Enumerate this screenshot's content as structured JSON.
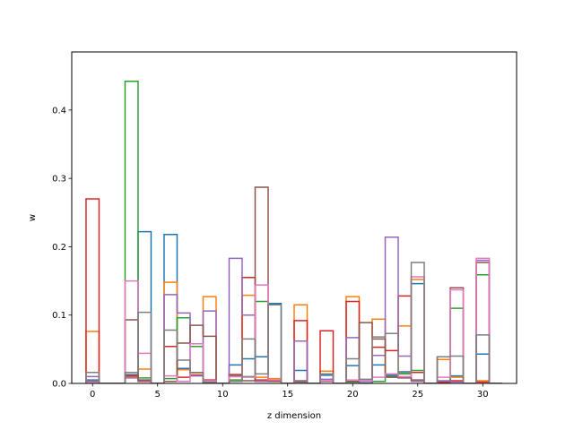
{
  "chart_data": {
    "type": "bar",
    "style": "step-outline histogram",
    "xlabel": "z dimension",
    "ylabel": "w",
    "xlim": [
      -1.6,
      32.6
    ],
    "ylim": [
      0,
      0.485
    ],
    "xticks": [
      0,
      5,
      10,
      15,
      20,
      25,
      30
    ],
    "yticks": [
      0.0,
      0.1,
      0.2,
      0.3,
      0.4
    ],
    "grid": false,
    "legend": "none",
    "bin_width": 1,
    "series": [
      {
        "color": "#1f77b4",
        "values": [
          0.005,
          0,
          0,
          0.013,
          0.222,
          0,
          0.218,
          0.022,
          0.012,
          0,
          0,
          0.027,
          0.036,
          0.039,
          0.117,
          0,
          0.019,
          0,
          0.012,
          0,
          0.026,
          0.003,
          0.027,
          0.012,
          0.017,
          0.146,
          0,
          0,
          0.011,
          0,
          0.043,
          0
        ]
      },
      {
        "color": "#ff7f0e",
        "values": [
          0.076,
          0,
          0,
          0.01,
          0.021,
          0,
          0.148,
          0.02,
          0.015,
          0.127,
          0,
          0.01,
          0.129,
          0.009,
          0.007,
          0,
          0.115,
          0,
          0.018,
          0,
          0.127,
          0,
          0.094,
          0.01,
          0.084,
          0.152,
          0,
          0.035,
          0.009,
          0,
          0.004,
          0
        ]
      },
      {
        "color": "#2ca02c",
        "values": [
          0,
          0,
          0,
          0.442,
          0.008,
          0,
          0.007,
          0.096,
          0.054,
          0,
          0,
          0.005,
          0.01,
          0.12,
          0.004,
          0,
          0.003,
          0,
          0.003,
          0,
          0.002,
          0,
          0.003,
          0.01,
          0.014,
          0.019,
          0,
          0.002,
          0.11,
          0,
          0.159,
          0
        ]
      },
      {
        "color": "#d62728",
        "values": [
          0.27,
          0,
          0,
          0.011,
          0.003,
          0,
          0.054,
          0.009,
          0.012,
          0.005,
          0,
          0.013,
          0.155,
          0.005,
          0.004,
          0,
          0.092,
          0,
          0.077,
          0,
          0.12,
          0,
          0.053,
          0.048,
          0.128,
          0.016,
          0,
          0.002,
          0.004,
          0,
          0.002,
          0
        ]
      },
      {
        "color": "#9467bd",
        "values": [
          0.01,
          0,
          0,
          0.008,
          0.004,
          0,
          0.13,
          0.103,
          0.011,
          0.106,
          0,
          0.183,
          0.1,
          0.003,
          0.003,
          0,
          0.062,
          0,
          0.006,
          0,
          0.067,
          0,
          0.041,
          0.214,
          0.04,
          0.003,
          0,
          0.004,
          0.002,
          0,
          0.18,
          0
        ]
      },
      {
        "color": "#8c564b",
        "values": [
          0.003,
          0,
          0,
          0.093,
          0.005,
          0,
          0.003,
          0.059,
          0.085,
          0.069,
          0,
          0.012,
          0.004,
          0.287,
          0.003,
          0,
          0.002,
          0,
          0.003,
          0,
          0.003,
          0.089,
          0.065,
          0.009,
          0.008,
          0.005,
          0,
          0.039,
          0.14,
          0,
          0.177,
          0
        ]
      },
      {
        "color": "#e377c2",
        "values": [
          0.002,
          0,
          0,
          0.15,
          0.044,
          0,
          0.011,
          0.003,
          0.058,
          0.004,
          0,
          0.01,
          0.009,
          0.144,
          0.005,
          0,
          0.004,
          0,
          0.004,
          0,
          0.005,
          0.004,
          0.009,
          0.014,
          0.01,
          0.156,
          0,
          0.009,
          0.137,
          0,
          0.183,
          0
        ]
      },
      {
        "color": "#7f7f7f",
        "values": [
          0.016,
          0,
          0,
          0.016,
          0.104,
          0,
          0.078,
          0.034,
          0.016,
          0.002,
          0,
          0.003,
          0.065,
          0.014,
          0.115,
          0,
          0.004,
          0,
          0.014,
          0,
          0.036,
          0.006,
          0.068,
          0.073,
          0.016,
          0.177,
          0,
          0.039,
          0.04,
          0,
          0.071,
          0
        ]
      }
    ]
  }
}
